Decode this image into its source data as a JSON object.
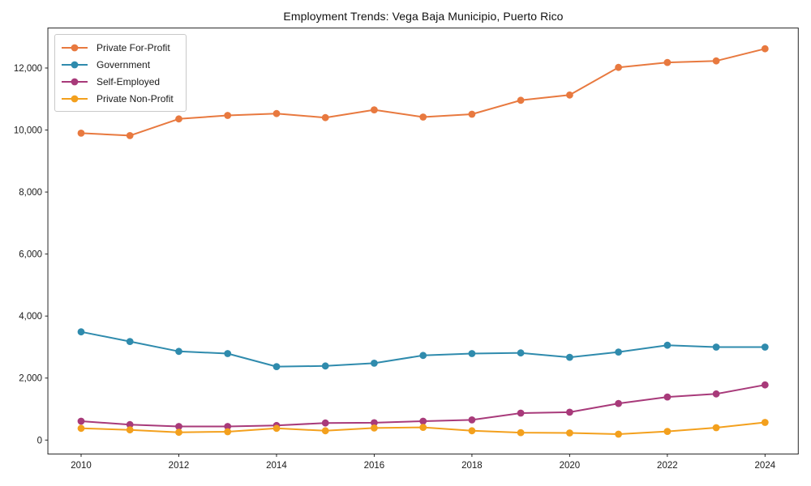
{
  "figure": {
    "background": "#ffffff",
    "spine_color": "#262626"
  },
  "chart_data": {
    "type": "line",
    "title": "Employment Trends: Vega Baja Municipio, Puerto Rico",
    "xlabel": "",
    "ylabel": "",
    "grid": false,
    "legend_position": "upper-left",
    "x": [
      2010,
      2011,
      2012,
      2013,
      2014,
      2015,
      2016,
      2017,
      2018,
      2019,
      2020,
      2021,
      2022,
      2023,
      2024
    ],
    "x_ticks": [
      2010,
      2012,
      2014,
      2016,
      2018,
      2020,
      2022,
      2024
    ],
    "x_tick_labels": [
      "2010",
      "2012",
      "2014",
      "2016",
      "2018",
      "2020",
      "2022",
      "2024"
    ],
    "y_ticks": [
      0,
      2000,
      4000,
      6000,
      8000,
      10000,
      12000
    ],
    "y_tick_labels": [
      "0",
      "2,000",
      "4,000",
      "6,000",
      "8,000",
      "10,000",
      "12,000"
    ],
    "xlim": [
      2009.32,
      2024.68
    ],
    "ylim": [
      -450,
      13290
    ],
    "series": [
      {
        "name": "Private For-Profit",
        "color": "#e8793f",
        "values": [
          9900,
          9820,
          10360,
          10470,
          10530,
          10400,
          10650,
          10420,
          10510,
          10960,
          11130,
          12020,
          12180,
          12230,
          12620
        ]
      },
      {
        "name": "Government",
        "color": "#2f8bad",
        "values": [
          3490,
          3180,
          2860,
          2790,
          2370,
          2390,
          2480,
          2730,
          2790,
          2810,
          2670,
          2840,
          3060,
          3000,
          3000
        ]
      },
      {
        "name": "Self-Employed",
        "color": "#a83a7a",
        "values": [
          610,
          500,
          440,
          440,
          470,
          550,
          560,
          610,
          650,
          870,
          900,
          1180,
          1390,
          1490,
          1780
        ]
      },
      {
        "name": "Private Non-Profit",
        "color": "#f3a01d",
        "values": [
          380,
          330,
          250,
          270,
          380,
          300,
          390,
          410,
          300,
          240,
          230,
          190,
          280,
          400,
          570
        ]
      }
    ]
  }
}
